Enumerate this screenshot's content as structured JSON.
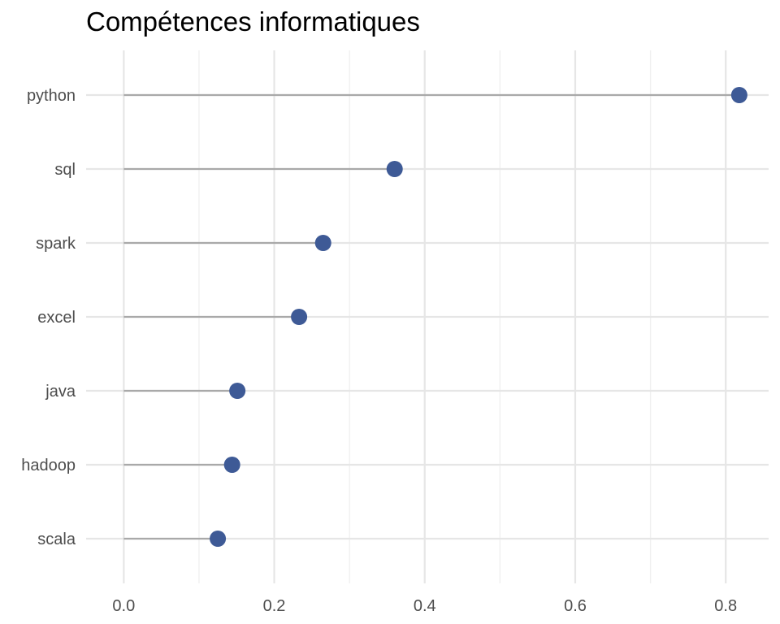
{
  "chart_data": {
    "type": "lollipop",
    "title": "Compétences informatiques",
    "xlabel": "",
    "ylabel": "",
    "categories": [
      "python",
      "sql",
      "spark",
      "excel",
      "java",
      "hadoop",
      "scala"
    ],
    "values": [
      0.818,
      0.36,
      0.265,
      0.233,
      0.151,
      0.144,
      0.125
    ],
    "xlim": [
      -0.05,
      0.857
    ],
    "xticks": [
      0.0,
      0.2,
      0.4,
      0.6,
      0.8
    ],
    "xtick_labels": [
      "0.0",
      "0.2",
      "0.4",
      "0.6",
      "0.8"
    ],
    "grid": true,
    "legend": "none",
    "colors": {
      "point": "#3e5a96",
      "stem": "#a9a9a9",
      "grid_major": "#e6e6e6",
      "grid_minor": "#f0f0f0",
      "tick_text": "#4d4d4d"
    }
  }
}
